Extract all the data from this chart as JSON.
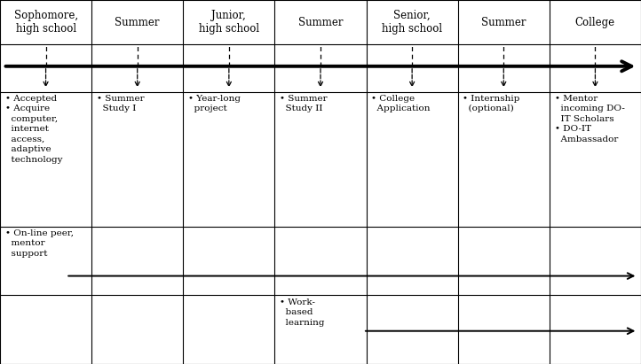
{
  "columns": [
    "Sophomore,\nhigh school",
    "Summer",
    "Junior,\nhigh school",
    "Summer",
    "Senior,\nhigh school",
    "Summer",
    "College"
  ],
  "n_cols": 7,
  "cell_texts_row0": [
    "• Accepted\n• Acquire\n  computer,\n  internet\n  access,\n  adaptive\n  technology",
    "• Summer\n  Study I",
    "• Year-long\n  project",
    "• Summer\n  Study II",
    "• College\n  Application",
    "• Internship\n  (optional)",
    "• Mentor\n  incoming DO-\n  IT Scholars\n• DO-IT\n  Ambassador"
  ],
  "cell_texts_row1": [
    "• On-line peer,\n  mentor\n  support",
    "",
    "",
    "",
    "",
    "",
    ""
  ],
  "cell_texts_row3": [
    "",
    "",
    "",
    "• Work-\n  based\n  learning",
    "",
    "",
    ""
  ],
  "bg_color": "#ffffff",
  "grid_color": "#000000",
  "text_color": "#000000",
  "arrow_color": "#000000",
  "font_size": 7.5,
  "header_font_size": 8.5,
  "row_tops": [
    1.0,
    0.878,
    0.748,
    0.378,
    0.189
  ],
  "row_bottoms": [
    0.878,
    0.748,
    0.378,
    0.189,
    0.0
  ]
}
